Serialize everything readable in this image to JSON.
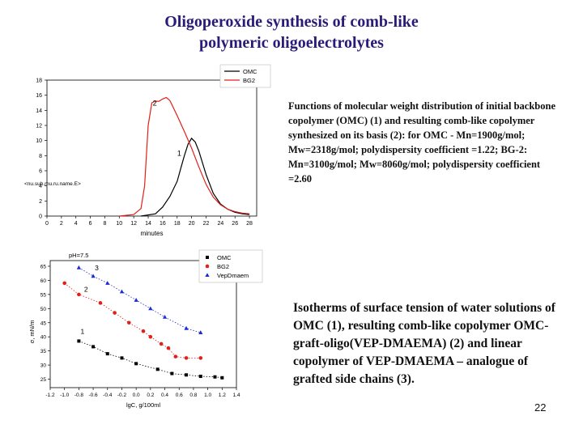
{
  "title_line1": "Oligoperoxide synthesis  of comb-like",
  "title_line2": "polymeric oligoelectrolytes",
  "description1": "Functions of molecular weight distribution of initial backbone copolymer (OMC) (1) and resulting comb-like copolymer synthesized on its basis  (2): for OMC - Mn=1900g/mol; Mw=2318g/mol; polydispersity coefficient =1.22; BG-2: Mn=3100g/mol; Mw=8060g/mol; polydispersity coefficient =2.60",
  "description2": "Isotherms of surface tension of water solutions of OMC (1), resulting comb-like copolymer OMC-graft-oligo(VEP-DMAEMA) (2) and linear copolymer of VEP-DMAEMA – analogue of grafted side chains (3).",
  "page_number": "22",
  "colors": {
    "title": "#2a1a7a",
    "omc": "#000000",
    "bg2": "#e0201a",
    "vep": "#1a2ad8"
  },
  "chart_data": [
    {
      "type": "line",
      "xlabel": "minutes",
      "ylabel": "<nu.sub.mu.ru.name.E>",
      "xlim": [
        0,
        29
      ],
      "ylim": [
        0,
        18
      ],
      "xticks": [
        "0",
        "2",
        "4",
        "6",
        "8",
        "10",
        "12",
        "14",
        "16",
        "18",
        "20",
        "22",
        "24",
        "26",
        "28"
      ],
      "yticks": [
        "0",
        "2",
        "4",
        "6",
        "8",
        "10",
        "12",
        "14",
        "16",
        "18"
      ],
      "legend_position": "top-right",
      "annotations": [
        {
          "text": "2",
          "x": 14.9,
          "y": 14.6
        },
        {
          "text": "1",
          "x": 18.3,
          "y": 8.0
        }
      ],
      "series": [
        {
          "name": "OMC",
          "color": "#000000",
          "x": [
            13,
            15,
            16,
            17,
            18,
            18.5,
            19,
            19.5,
            20,
            20.5,
            21,
            22,
            23,
            24,
            25,
            26,
            27,
            28
          ],
          "y": [
            0,
            0.3,
            1.2,
            2.6,
            4.6,
            6.3,
            8.0,
            9.5,
            10.3,
            9.8,
            8.6,
            5.5,
            3.0,
            1.6,
            0.9,
            0.5,
            0.3,
            0.2
          ]
        },
        {
          "name": "BG2",
          "color": "#e0201a",
          "x": [
            10,
            12,
            13,
            13.5,
            14,
            14.5,
            15,
            15.5,
            16,
            16.5,
            17,
            17.5,
            18,
            19,
            20,
            21,
            22,
            23,
            24,
            25,
            26,
            27,
            28
          ],
          "y": [
            0,
            0.2,
            1.0,
            4.0,
            12.0,
            15.0,
            15.2,
            15.2,
            15.5,
            15.7,
            15.3,
            14.3,
            13.3,
            11.2,
            9.0,
            6.5,
            4.2,
            2.5,
            1.5,
            0.9,
            0.6,
            0.4,
            0.3
          ]
        }
      ]
    },
    {
      "type": "scatter",
      "title": "pH=7.5",
      "xlabel": "lgC, g/100ml",
      "ylabel": "σ, mN/m",
      "xlim": [
        -1.2,
        1.4
      ],
      "ylim": [
        22,
        67
      ],
      "xticks": [
        "-1.2",
        "-1.0",
        "-0.8",
        "-0.6",
        "-0.4",
        "-0.2",
        "0.0",
        "0.2",
        "0.4",
        "0.6",
        "0.8",
        "1.0",
        "1.2",
        "1.4"
      ],
      "yticks": [
        "25",
        "30",
        "35",
        "40",
        "45",
        "50",
        "55",
        "60",
        "65"
      ],
      "legend_position": "top-right",
      "annotations": [
        {
          "text": "3",
          "x": -0.55,
          "y": 63.5
        },
        {
          "text": "2",
          "x": -0.7,
          "y": 56
        },
        {
          "text": "1",
          "x": -0.75,
          "y": 41
        }
      ],
      "series": [
        {
          "name": "OMC",
          "color": "#000000",
          "marker": "square",
          "x": [
            -0.8,
            -0.6,
            -0.4,
            -0.2,
            0.0,
            0.3,
            0.5,
            0.7,
            0.9,
            1.1,
            1.2
          ],
          "y": [
            38.5,
            36.5,
            34.0,
            32.5,
            30.5,
            28.5,
            27.0,
            26.5,
            26.0,
            25.8,
            25.5
          ]
        },
        {
          "name": "BG2",
          "color": "#e0201a",
          "marker": "circle",
          "x": [
            -1.0,
            -0.8,
            -0.5,
            -0.3,
            -0.1,
            0.1,
            0.2,
            0.35,
            0.45,
            0.55,
            0.7,
            0.9
          ],
          "y": [
            59.0,
            55.0,
            52.0,
            48.5,
            45.0,
            42.0,
            40.0,
            37.5,
            36.0,
            33.0,
            32.5,
            32.5
          ]
        },
        {
          "name": "VepDmaem",
          "color": "#1a2ad8",
          "marker": "triangle",
          "x": [
            -0.8,
            -0.6,
            -0.4,
            -0.2,
            0.0,
            0.2,
            0.4,
            0.7,
            0.9
          ],
          "y": [
            64.5,
            61.5,
            59.0,
            56.0,
            53.0,
            50.0,
            47.0,
            43.0,
            41.5
          ]
        }
      ]
    }
  ]
}
